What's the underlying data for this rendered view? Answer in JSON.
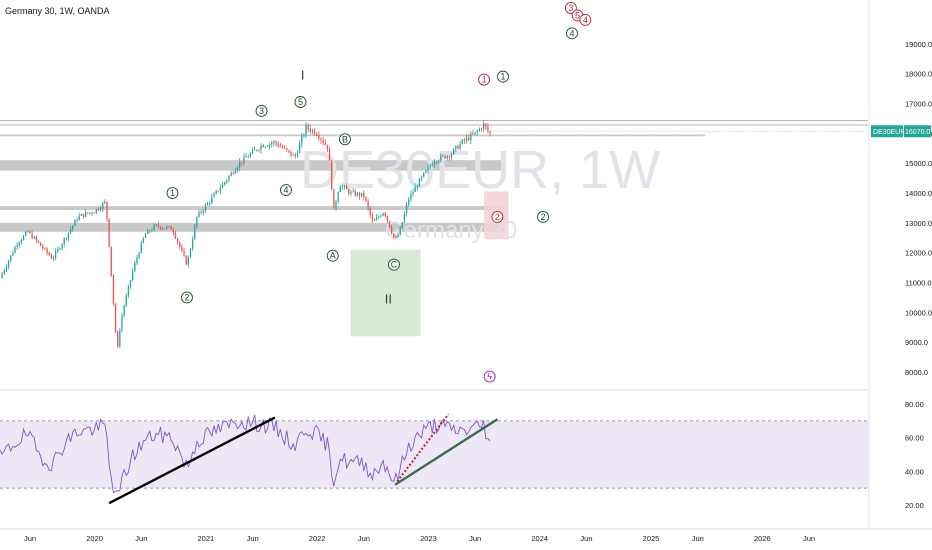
{
  "header": {
    "title": "Germany 30, 1W, OANDA"
  },
  "watermark": {
    "symbol": "DE30EUR, 1W",
    "name": "Germany 30"
  },
  "price_tag": {
    "symbol": "DE30EUR",
    "value": "16070.0"
  },
  "colors": {
    "up": "#26a69a",
    "down": "#ef5350",
    "rsi_line": "#7e57c2",
    "rsi_band": "#ede7f6",
    "zone": "#c8c8c8",
    "green_box": "#d4e8d2",
    "red_box": "#f3d3d6",
    "wave_green": "#1e4d2b",
    "wave_red": "#b0243c"
  },
  "chart_data": [
    {
      "type": "candlestick",
      "title": "Germany 30, 1W, OANDA",
      "y_ticks": [
        "19000.0",
        "18000.0",
        "17000.0",
        "16000.0",
        "15000.0",
        "14000.0",
        "13000.0",
        "12000.0",
        "11000.0",
        "10000.0",
        "9000.0",
        "8000.0"
      ],
      "ylim": [
        7500,
        20300
      ],
      "x_ticks": [
        "Jun",
        "2020",
        "Jun",
        "2021",
        "Jun",
        "2022",
        "Jun",
        "2023",
        "Jun",
        "2024",
        "Jun",
        "2025",
        "Jun",
        "2026",
        "Jun"
      ],
      "xlim": [
        2019.15,
        2026.95
      ],
      "x_tick_values": [
        2019.42,
        2020.0,
        2020.42,
        2021.0,
        2021.42,
        2022.0,
        2022.42,
        2023.0,
        2023.42,
        2024.0,
        2024.42,
        2025.0,
        2025.42,
        2026.0,
        2026.42
      ],
      "anchors": [
        [
          2019.15,
          11150
        ],
        [
          2019.3,
          12300
        ],
        [
          2019.4,
          12700
        ],
        [
          2019.5,
          12300
        ],
        [
          2019.62,
          11800
        ],
        [
          2019.72,
          12400
        ],
        [
          2019.85,
          13200
        ],
        [
          2020.0,
          13400
        ],
        [
          2020.1,
          13700
        ],
        [
          2020.13,
          12300
        ],
        [
          2020.2,
          8700
        ],
        [
          2020.25,
          10000
        ],
        [
          2020.35,
          11500
        ],
        [
          2020.45,
          12600
        ],
        [
          2020.55,
          12900
        ],
        [
          2020.7,
          12800
        ],
        [
          2020.83,
          11600
        ],
        [
          2020.92,
          13200
        ],
        [
          2021.05,
          13800
        ],
        [
          2021.3,
          15000
        ],
        [
          2021.5,
          15600
        ],
        [
          2021.62,
          15700
        ],
        [
          2021.8,
          15200
        ],
        [
          2021.9,
          16200
        ],
        [
          2022.0,
          16000
        ],
        [
          2022.1,
          15500
        ],
        [
          2022.15,
          13400
        ],
        [
          2022.2,
          14300
        ],
        [
          2022.3,
          14000
        ],
        [
          2022.42,
          13900
        ],
        [
          2022.5,
          13000
        ],
        [
          2022.6,
          13400
        ],
        [
          2022.7,
          12400
        ],
        [
          2022.75,
          12800
        ],
        [
          2022.82,
          13800
        ],
        [
          2022.92,
          14400
        ],
        [
          2023.05,
          15100
        ],
        [
          2023.2,
          15300
        ],
        [
          2023.3,
          15700
        ],
        [
          2023.42,
          16000
        ],
        [
          2023.5,
          16300
        ],
        [
          2023.55,
          15950
        ],
        [
          2023.56,
          16070
        ]
      ],
      "resistance_lines": [
        16430,
        16280
      ],
      "zones": [
        [
          15900,
          15960
        ],
        [
          14750,
          15100
        ],
        [
          13430,
          13560
        ],
        [
          12700,
          13000
        ]
      ],
      "boxes": [
        {
          "color": "green",
          "x": [
            2022.3,
            2022.93
          ],
          "y": [
            9200,
            12100
          ]
        },
        {
          "color": "red",
          "x": [
            2023.5,
            2023.72
          ],
          "y": [
            12450,
            14050
          ]
        }
      ],
      "annotations": [
        {
          "label": "I",
          "kind": "roman",
          "x": 2021.87,
          "y": 17800
        },
        {
          "label": "II",
          "kind": "roman",
          "x": 2022.64,
          "y": 10300
        },
        {
          "label": "1",
          "color": "green",
          "x": 2020.7,
          "y": 14000
        },
        {
          "label": "2",
          "color": "green",
          "x": 2020.83,
          "y": 10500
        },
        {
          "label": "3",
          "color": "green",
          "x": 2021.5,
          "y": 16750
        },
        {
          "label": "4",
          "color": "green",
          "x": 2021.72,
          "y": 14100
        },
        {
          "label": "5",
          "color": "green",
          "x": 2021.85,
          "y": 17050
        },
        {
          "label": "A",
          "color": "green",
          "x": 2022.14,
          "y": 11900
        },
        {
          "label": "B",
          "color": "green",
          "x": 2022.25,
          "y": 15800
        },
        {
          "label": "C",
          "color": "green",
          "x": 2022.69,
          "y": 11600
        },
        {
          "label": "1",
          "color": "red",
          "x": 2023.5,
          "y": 17800
        },
        {
          "label": "1",
          "color": "green",
          "x": 2023.67,
          "y": 17900
        },
        {
          "label": "2",
          "color": "red",
          "x": 2023.62,
          "y": 13200
        },
        {
          "label": "2",
          "color": "green",
          "x": 2024.03,
          "y": 13200
        },
        {
          "label": "3",
          "color": "red",
          "x": 2024.28,
          "y": 20200
        },
        {
          "label": "5",
          "color": "red",
          "x": 2024.34,
          "y": 19950
        },
        {
          "label": "4",
          "color": "red",
          "x": 2024.41,
          "y": 19800
        },
        {
          "label": "4",
          "color": "green",
          "x": 2024.29,
          "y": 19350
        },
        {
          "label": "ϟ",
          "color": "purple",
          "x": 2023.55,
          "y": 7850
        }
      ]
    },
    {
      "type": "line",
      "title": "RSI",
      "y_ticks": [
        "80.00",
        "60.00",
        "40.00",
        "20.00"
      ],
      "ylim": [
        14,
        86
      ],
      "bands": [
        30,
        70
      ],
      "anchors": [
        [
          2019.15,
          48
        ],
        [
          2019.3,
          58
        ],
        [
          2019.4,
          62
        ],
        [
          2019.5,
          50
        ],
        [
          2019.62,
          44
        ],
        [
          2019.72,
          56
        ],
        [
          2019.85,
          64
        ],
        [
          2020.0,
          65
        ],
        [
          2020.1,
          67
        ],
        [
          2020.13,
          44
        ],
        [
          2020.2,
          22
        ],
        [
          2020.25,
          35
        ],
        [
          2020.35,
          50
        ],
        [
          2020.45,
          58
        ],
        [
          2020.55,
          62
        ],
        [
          2020.7,
          60
        ],
        [
          2020.83,
          42
        ],
        [
          2020.92,
          58
        ],
        [
          2021.05,
          63
        ],
        [
          2021.3,
          70
        ],
        [
          2021.5,
          68
        ],
        [
          2021.62,
          66
        ],
        [
          2021.8,
          55
        ],
        [
          2021.9,
          66
        ],
        [
          2022.0,
          62
        ],
        [
          2022.1,
          55
        ],
        [
          2022.15,
          34
        ],
        [
          2022.2,
          48
        ],
        [
          2022.3,
          45
        ],
        [
          2022.42,
          45
        ],
        [
          2022.5,
          38
        ],
        [
          2022.6,
          46
        ],
        [
          2022.7,
          33
        ],
        [
          2022.75,
          42
        ],
        [
          2022.82,
          55
        ],
        [
          2022.92,
          62
        ],
        [
          2023.05,
          68
        ],
        [
          2023.2,
          65
        ],
        [
          2023.3,
          64
        ],
        [
          2023.42,
          66
        ],
        [
          2023.5,
          68
        ],
        [
          2023.55,
          55
        ],
        [
          2023.56,
          58
        ]
      ],
      "trendlines": [
        {
          "style": "solid",
          "color": "#000000",
          "points": [
            [
              2020.13,
              21
            ],
            [
              2021.62,
              72
            ]
          ]
        },
        {
          "style": "solid",
          "color": "#3d6b4a",
          "points": [
            [
              2022.7,
              32
            ],
            [
              2023.62,
              71
            ]
          ]
        },
        {
          "style": "dotted",
          "color": "#b0243c",
          "points": [
            [
              2022.72,
              34
            ],
            [
              2023.18,
              74
            ]
          ]
        }
      ]
    }
  ]
}
